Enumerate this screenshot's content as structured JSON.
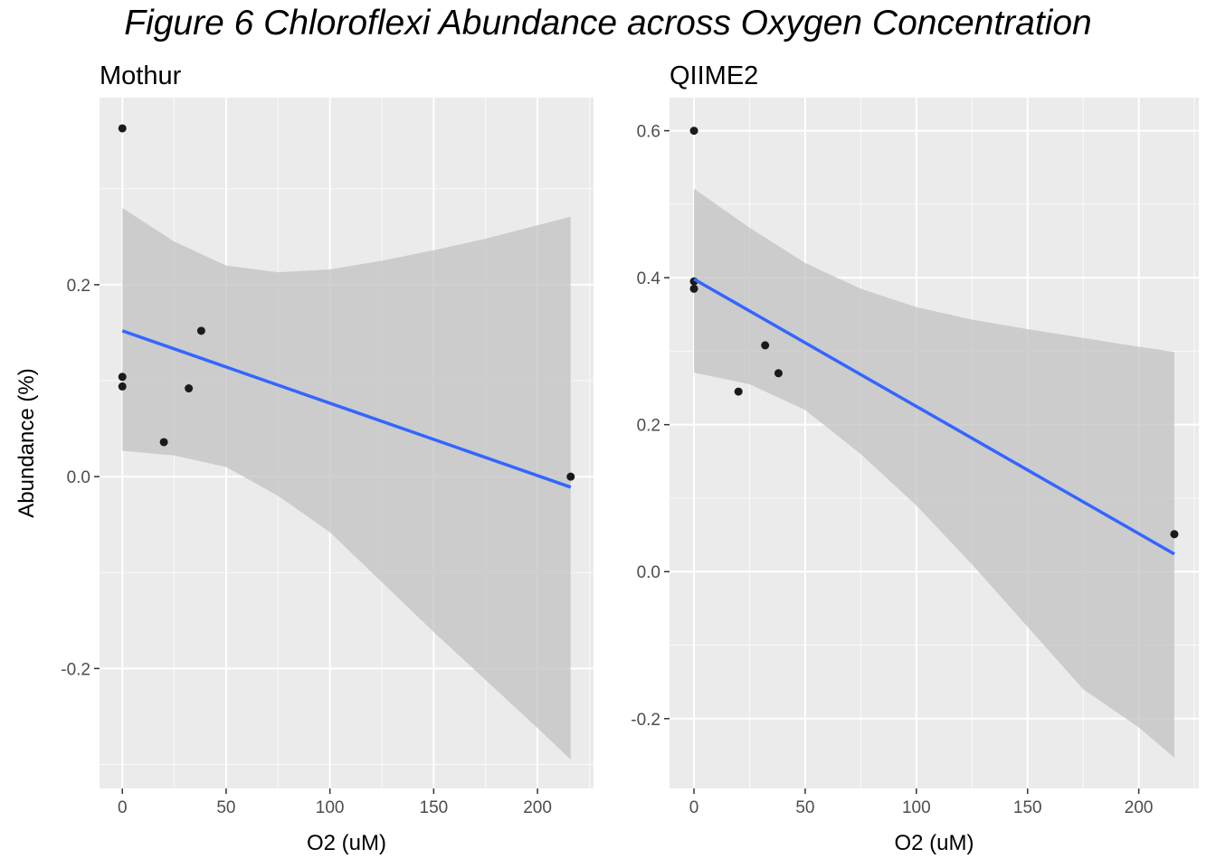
{
  "title": "Figure 6 Chloroflexi Abundance across Oxygen Concentration",
  "colors": {
    "panel_bg": "#EBEBEB",
    "grid_major": "#FFFFFF",
    "ribbon": "#C2C2C2",
    "fit_line": "#3366FF",
    "points": "#1A1A1A",
    "tick": "#333333"
  },
  "chart_data": [
    {
      "type": "scatter",
      "title": "Mothur",
      "xlabel": "O2 (uM)",
      "ylabel": "Abundance (%)",
      "xlim": [
        -11,
        227
      ],
      "ylim": [
        -0.325,
        0.395
      ],
      "x_ticks": [
        0,
        50,
        100,
        150,
        200
      ],
      "x_tick_labels": [
        "0",
        "50",
        "100",
        "150",
        "200"
      ],
      "y_ticks": [
        -0.2,
        0.0,
        0.2
      ],
      "y_tick_labels": [
        "-0.2",
        "0.0",
        "0.2"
      ],
      "grid": true,
      "points": [
        {
          "x": 0,
          "y": 0.363
        },
        {
          "x": 0,
          "y": 0.104
        },
        {
          "x": 0,
          "y": 0.094
        },
        {
          "x": 20,
          "y": 0.036
        },
        {
          "x": 32,
          "y": 0.092
        },
        {
          "x": 38,
          "y": 0.152
        },
        {
          "x": 216,
          "y": 0.0
        }
      ],
      "fit": {
        "x": [
          0,
          216
        ],
        "y": [
          0.152,
          -0.011
        ]
      },
      "ribbon": {
        "x": [
          0,
          25,
          50,
          75,
          100,
          125,
          150,
          175,
          200,
          216
        ],
        "upper": [
          0.28,
          0.245,
          0.22,
          0.213,
          0.216,
          0.225,
          0.236,
          0.248,
          0.262,
          0.271
        ],
        "lower": [
          0.027,
          0.022,
          0.01,
          -0.02,
          -0.058,
          -0.11,
          -0.162,
          -0.212,
          -0.262,
          -0.295
        ]
      }
    },
    {
      "type": "scatter",
      "title": "QIIME2",
      "xlabel": "O2 (uM)",
      "ylabel": "",
      "xlim": [
        -11,
        227
      ],
      "ylim": [
        -0.295,
        0.645
      ],
      "x_ticks": [
        0,
        50,
        100,
        150,
        200
      ],
      "x_tick_labels": [
        "0",
        "50",
        "100",
        "150",
        "200"
      ],
      "y_ticks": [
        -0.2,
        0.0,
        0.2,
        0.4,
        0.6
      ],
      "y_tick_labels": [
        "-0.2",
        "0.0",
        "0.2",
        "0.4",
        "0.6"
      ],
      "grid": true,
      "points": [
        {
          "x": 0,
          "y": 0.6
        },
        {
          "x": 0,
          "y": 0.395
        },
        {
          "x": 0,
          "y": 0.385
        },
        {
          "x": 20,
          "y": 0.245
        },
        {
          "x": 32,
          "y": 0.308
        },
        {
          "x": 38,
          "y": 0.27
        },
        {
          "x": 216,
          "y": 0.051
        }
      ],
      "fit": {
        "x": [
          0,
          216
        ],
        "y": [
          0.398,
          0.024
        ]
      },
      "ribbon": {
        "x": [
          0,
          25,
          50,
          75,
          100,
          125,
          150,
          175,
          200,
          216
        ],
        "upper": [
          0.521,
          0.468,
          0.42,
          0.385,
          0.36,
          0.343,
          0.33,
          0.318,
          0.306,
          0.299
        ],
        "lower": [
          0.271,
          0.255,
          0.22,
          0.16,
          0.09,
          0.01,
          -0.075,
          -0.16,
          -0.212,
          -0.253
        ]
      }
    }
  ]
}
